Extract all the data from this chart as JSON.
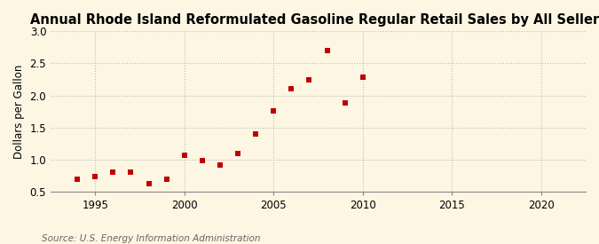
{
  "title": "Annual Rhode Island Reformulated Gasoline Regular Retail Sales by All Sellers",
  "ylabel": "Dollars per Gallon",
  "source": "Source: U.S. Energy Information Administration",
  "years": [
    1994,
    1995,
    1996,
    1997,
    1998,
    1999,
    2000,
    2001,
    2002,
    2003,
    2004,
    2005,
    2006,
    2007,
    2008,
    2009,
    2010
  ],
  "values": [
    0.7,
    0.73,
    0.81,
    0.81,
    0.62,
    0.7,
    1.07,
    0.98,
    0.91,
    1.1,
    1.4,
    1.76,
    2.11,
    2.24,
    2.7,
    1.88,
    2.29
  ],
  "marker_color": "#c00000",
  "bg_color": "#fdf6e3",
  "plot_bg_color": "#fdf6e3",
  "xlim": [
    1992.5,
    2022.5
  ],
  "ylim": [
    0.5,
    3.0
  ],
  "xticks": [
    1995,
    2000,
    2005,
    2010,
    2015,
    2020
  ],
  "yticks": [
    0.5,
    1.0,
    1.5,
    2.0,
    2.5,
    3.0
  ],
  "title_fontsize": 10.5,
  "label_fontsize": 8.5,
  "tick_fontsize": 8.5,
  "source_fontsize": 7.5,
  "grid_color": "#bbbbbb",
  "spine_color": "#888888"
}
